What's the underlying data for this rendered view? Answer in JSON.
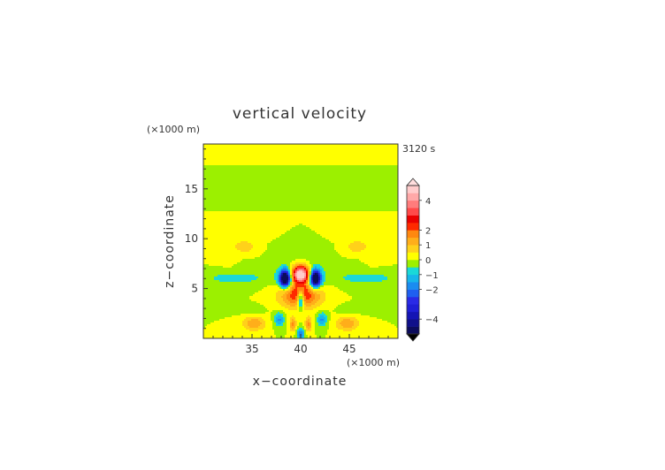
{
  "chart_data": {
    "type": "heatmap",
    "title": "vertical velocity",
    "time_label": "3120 s",
    "xlabel": "x−coordinate",
    "ylabel": "z−coordinate",
    "x_unit_label": "(×1000 m)",
    "y_unit_label": "(×1000 m)",
    "xlim": [
      30,
      50
    ],
    "ylim": [
      0,
      19.5
    ],
    "x_ticks": [
      35,
      40,
      45
    ],
    "y_ticks": [
      5,
      10,
      15
    ],
    "colorbar": {
      "levels": [
        -5.0,
        -4.5,
        -4.0,
        -3.5,
        -3.0,
        -2.5,
        -2.0,
        -1.5,
        -1.0,
        -0.5,
        0.0,
        0.5,
        1.0,
        1.5,
        2.0,
        2.5,
        3.0,
        3.5,
        4.0,
        4.5,
        5.0
      ],
      "colors": [
        "#0c0c5c",
        "#10108a",
        "#1414b4",
        "#1f1fd6",
        "#2a2ae6",
        "#1f5ff0",
        "#1a8cf0",
        "#17b6ea",
        "#1ad8d8",
        "#9cf000",
        "#ffff00",
        "#ffd11a",
        "#ffae1a",
        "#ff8810",
        "#ff2a00",
        "#ea0000",
        "#ff4a4a",
        "#ff7c7c",
        "#ffa8a8",
        "#ffcccc"
      ],
      "tick_labels": [
        "4",
        "2",
        "1",
        "0",
        "−1",
        "−2",
        "−4"
      ],
      "tick_values": [
        4,
        2,
        1,
        0,
        -1,
        -2,
        -4
      ],
      "extend": "both"
    },
    "features": [
      {
        "name": "updraft core",
        "x": 40.0,
        "z": 6.3,
        "max_value": 5.0
      },
      {
        "name": "left downdraft",
        "x": 38.4,
        "z": 6.0,
        "min_value": -4.5
      },
      {
        "name": "right downdraft",
        "x": 41.5,
        "z": 6.0,
        "min_value": -4.5
      },
      {
        "name": "lower updraft",
        "x": 40.0,
        "z": 3.8,
        "max_value": 3.0
      },
      {
        "name": "central downdraft",
        "x": 40.0,
        "z": 3.9,
        "min_value": -2.0
      },
      {
        "name": "left warm lobe",
        "x": 35.2,
        "z": 1.5,
        "max_value": 1.4
      },
      {
        "name": "right warm lobe",
        "x": 44.8,
        "z": 1.5,
        "max_value": 1.4
      }
    ]
  }
}
